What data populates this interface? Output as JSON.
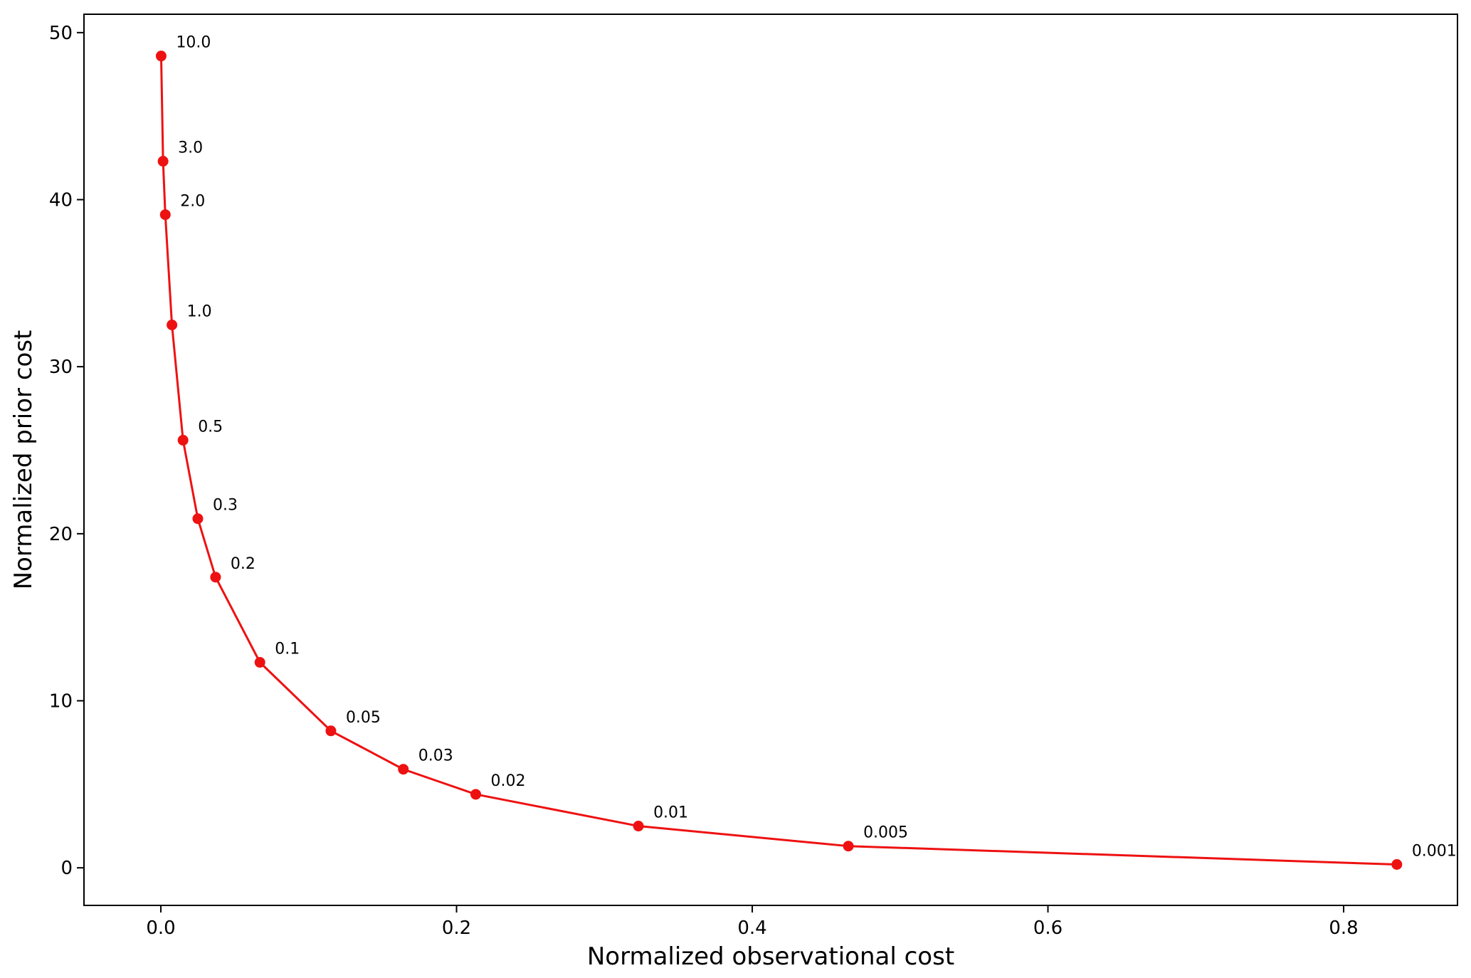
{
  "chart_data": {
    "type": "line",
    "xlabel": "Normalized observational cost",
    "ylabel": "Normalized prior cost",
    "xlim": [
      -0.052,
      0.877
    ],
    "ylim": [
      -2.25,
      51.1
    ],
    "xticks": [
      0.0,
      0.2,
      0.4,
      0.6,
      0.8
    ],
    "xtick_labels": [
      "0.0",
      "0.2",
      "0.4",
      "0.6",
      "0.8"
    ],
    "yticks": [
      0,
      10,
      20,
      30,
      40,
      50
    ],
    "ytick_labels": [
      "0",
      "10",
      "20",
      "30",
      "40",
      "50"
    ],
    "grid": false,
    "series": [
      {
        "color": "#ee1111",
        "marker": "circle",
        "points": [
          {
            "x": 0.0002,
            "y": 48.6,
            "label": "10.0"
          },
          {
            "x": 0.0015,
            "y": 42.3,
            "label": "3.0"
          },
          {
            "x": 0.003,
            "y": 39.1,
            "label": "2.0"
          },
          {
            "x": 0.0075,
            "y": 32.5,
            "label": "1.0"
          },
          {
            "x": 0.015,
            "y": 25.6,
            "label": "0.5"
          },
          {
            "x": 0.025,
            "y": 20.9,
            "label": "0.3"
          },
          {
            "x": 0.037,
            "y": 17.4,
            "label": "0.2"
          },
          {
            "x": 0.067,
            "y": 12.3,
            "label": "0.1"
          },
          {
            "x": 0.115,
            "y": 8.2,
            "label": "0.05"
          },
          {
            "x": 0.164,
            "y": 5.9,
            "label": "0.03"
          },
          {
            "x": 0.213,
            "y": 4.4,
            "label": "0.02"
          },
          {
            "x": 0.323,
            "y": 2.5,
            "label": "0.01"
          },
          {
            "x": 0.465,
            "y": 1.3,
            "label": "0.005"
          },
          {
            "x": 0.836,
            "y": 0.2,
            "label": "0.001"
          }
        ]
      }
    ]
  }
}
